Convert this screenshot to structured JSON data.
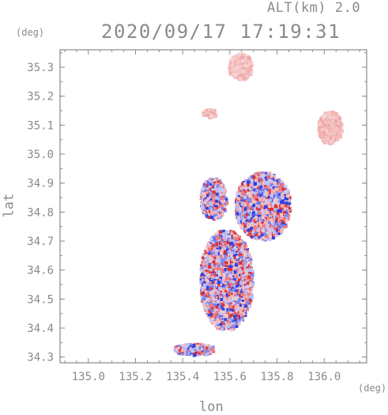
{
  "header": {
    "alt_label": "ALT(km) 2.0",
    "timestamp": "2020/09/17 17:19:31"
  },
  "units": {
    "y": "(deg)",
    "x": "(deg)"
  },
  "axes": {
    "xlabel": "lon",
    "ylabel": "lat",
    "xlim": [
      134.88,
      136.18
    ],
    "ylim": [
      34.28,
      35.36
    ],
    "xticks": [
      "135.0",
      "135.2",
      "135.4",
      "135.6",
      "135.8",
      "136.0"
    ],
    "yticks": [
      "34.3",
      "34.4",
      "34.5",
      "34.6",
      "34.7",
      "34.8",
      "34.9",
      "35.0",
      "35.1",
      "35.2",
      "35.3"
    ]
  },
  "colors": {
    "positive": "#e03030",
    "negative": "#3040e0",
    "neutral_pink": "#f2b8b8",
    "frame": "#8a8a8a"
  },
  "echo_regions": [
    {
      "name": "north-pink-blob",
      "lon": [
        135.59,
        135.69
      ],
      "lat": [
        35.26,
        35.35
      ],
      "tone": "pink"
    },
    {
      "name": "northeast-pink-blob",
      "lon": [
        135.97,
        136.07
      ],
      "lat": [
        35.04,
        35.15
      ],
      "tone": "pink"
    },
    {
      "name": "small-pink-spot",
      "lon": [
        135.48,
        135.54
      ],
      "lat": [
        35.13,
        35.16
      ],
      "tone": "pink"
    },
    {
      "name": "central-east-cluster",
      "lon": [
        135.62,
        135.85
      ],
      "lat": [
        34.71,
        34.94
      ],
      "tone": "mixed"
    },
    {
      "name": "central-west-speckle",
      "lon": [
        135.47,
        135.58
      ],
      "lat": [
        34.78,
        34.92
      ],
      "tone": "mixed"
    },
    {
      "name": "main-southern-cluster",
      "lon": [
        135.47,
        135.69
      ],
      "lat": [
        34.4,
        34.74
      ],
      "tone": "mixed"
    },
    {
      "name": "southern-strip",
      "lon": [
        135.36,
        135.53
      ],
      "lat": [
        34.31,
        34.35
      ],
      "tone": "mixed"
    }
  ]
}
